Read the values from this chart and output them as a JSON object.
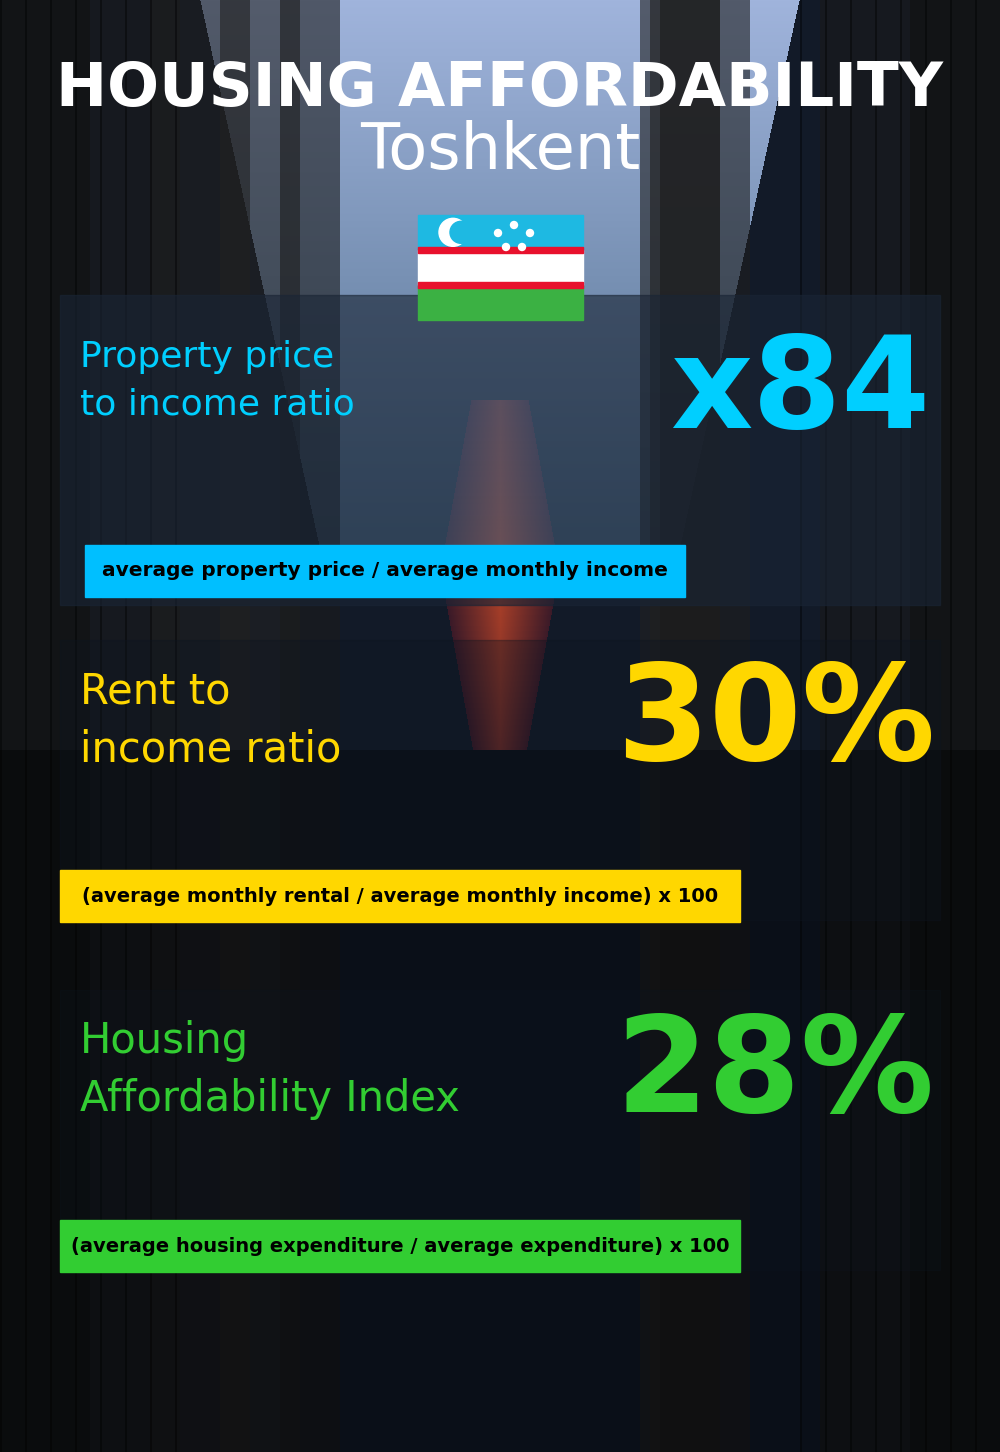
{
  "title_line1": "HOUSING AFFORDABILITY",
  "title_line2": "Toshkent",
  "section1_label": "Property price\nto income ratio",
  "section1_value": "x84",
  "section1_label_color": "#00CFFF",
  "section1_value_color": "#00CFFF",
  "section1_formula": "average property price / average monthly income",
  "section1_formula_bg": "#00BFFF",
  "section2_label": "Rent to\nincome ratio",
  "section2_value": "30%",
  "section2_label_color": "#FFD700",
  "section2_value_color": "#FFD700",
  "section2_formula": "(average monthly rental / average monthly income) x 100",
  "section2_formula_bg": "#FFD700",
  "section3_label": "Housing\nAffordability Index",
  "section3_value": "28%",
  "section3_label_color": "#32CD32",
  "section3_value_color": "#32CD32",
  "section3_formula": "(average housing expenditure / average expenditure) x 100",
  "section3_formula_bg": "#32CD32",
  "bg_color": "#0a0e1a",
  "title_color": "#FFFFFF",
  "formula_text_color": "#000000"
}
